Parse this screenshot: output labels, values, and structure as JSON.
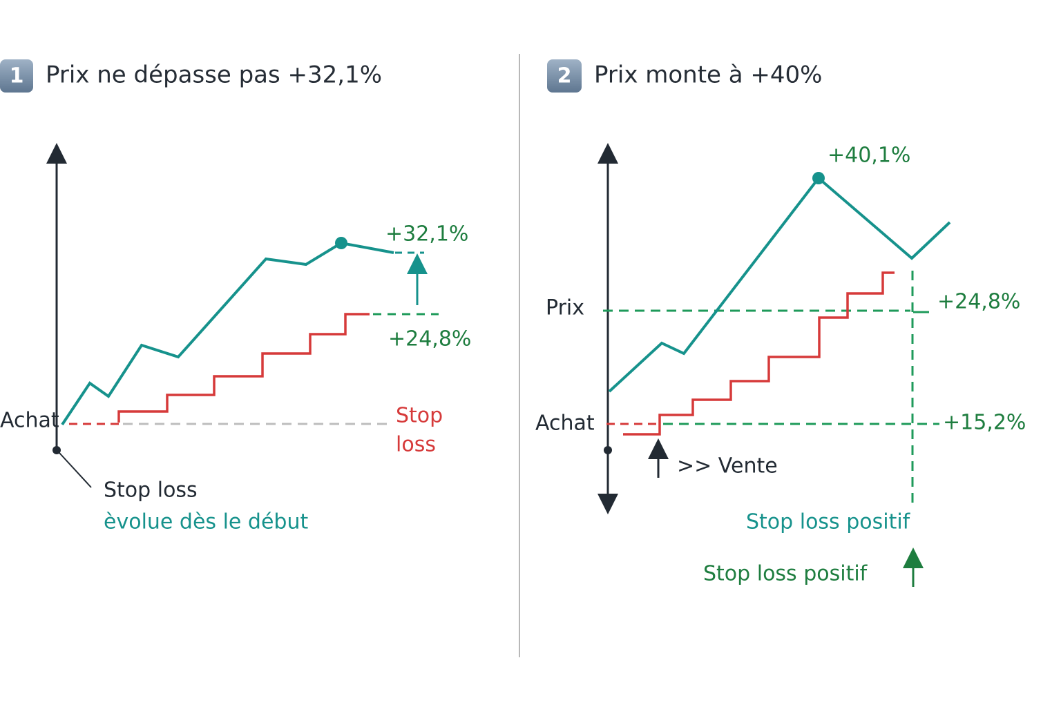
{
  "panels": [
    {
      "badge": "1",
      "title": "Prix ne dépasse pas +32,1%",
      "peak": "+32,1%",
      "stop_level": "+24,8%",
      "stop_label": [
        "Stop",
        "loss"
      ],
      "achat": "Achat",
      "note": [
        "Stop loss",
        "èvolue dès le début"
      ]
    },
    {
      "badge": "2",
      "title": "Prix monte à +40%",
      "peak": "+40,1%",
      "prix": "Prix",
      "upper_level": "+24,8%",
      "achat": "Achat",
      "lower_level": "+15,2%",
      "vente": ">> Vente",
      "positive_notes": [
        "Stop loss positif",
        "Stop loss positif"
      ]
    }
  ]
}
